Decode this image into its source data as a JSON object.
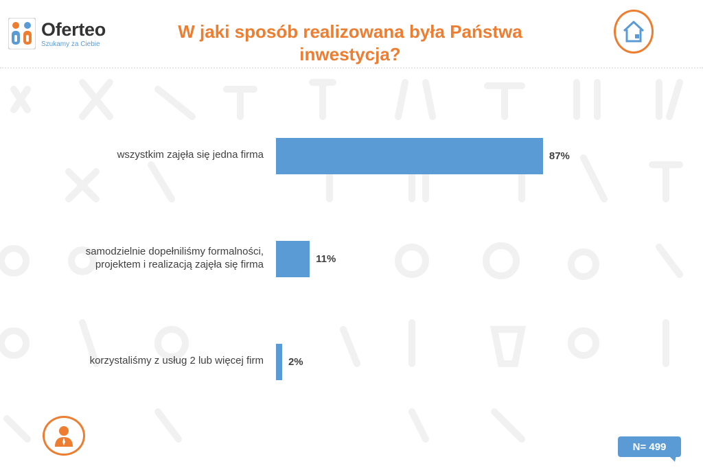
{
  "logo": {
    "name": "Oferteo",
    "tagline": "Szukamy za Ciebie"
  },
  "title": "W jaki sposób realizowana była Państwa inwestycja?",
  "sample_label": "N= 499",
  "colors": {
    "accent": "#ed7d31",
    "bar": "#5b9bd5",
    "text": "#404040"
  },
  "icons": {
    "top_right": "house-icon",
    "bottom_left": "person-icon"
  },
  "chart_data": {
    "type": "bar",
    "orientation": "horizontal",
    "categories": [
      "wszystkim zajęła się jedna firma",
      "samodzielnie dopełniliśmy formalności, projektem i realizacją zajęła się firma",
      "korzystaliśmy z usług 2 lub więcej firm"
    ],
    "category_lines": [
      [
        "wszystkim zajęła się jedna firma"
      ],
      [
        "samodzielnie dopełniliśmy formalności,",
        "projektem i realizacją zajęła się firma"
      ],
      [
        "korzystaliśmy z usług 2 lub więcej firm"
      ]
    ],
    "values": [
      87,
      11,
      2
    ],
    "value_labels": [
      "87%",
      "11%",
      "2%"
    ],
    "unit": "%",
    "xlim": [
      0,
      100
    ],
    "grid": false,
    "legend": "none"
  }
}
